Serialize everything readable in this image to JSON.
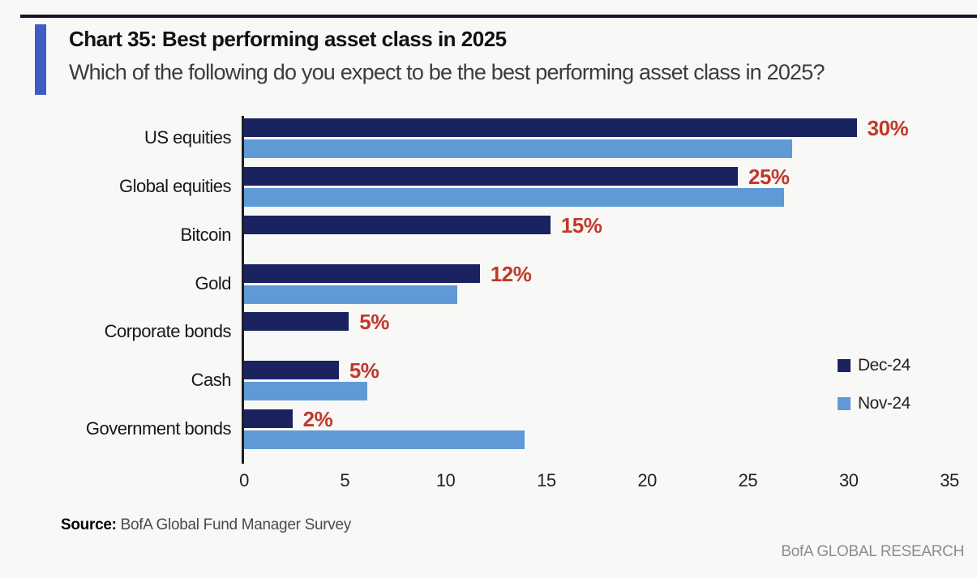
{
  "header": {
    "title": "Chart 35: Best performing asset class in 2025",
    "subtitle": "Which of the following do you expect to be the best performing asset class in 2025?",
    "accent_color": "#3d5cc5"
  },
  "chart_data": {
    "type": "bar",
    "orientation": "horizontal",
    "title": "Chart 35: Best performing asset class in 2025",
    "categories": [
      "US equities",
      "Global equities",
      "Bitcoin",
      "Gold",
      "Corporate bonds",
      "Cash",
      "Government bonds"
    ],
    "series": [
      {
        "name": "Dec-24",
        "color": "#1a2360",
        "values": [
          30.4,
          24.5,
          15.2,
          11.7,
          5.2,
          4.7,
          2.4
        ],
        "data_labels": [
          "30%",
          "25%",
          "15%",
          "12%",
          "5%",
          "5%",
          "2%"
        ]
      },
      {
        "name": "Nov-24",
        "color": "#5f9ad6",
        "values": [
          27.2,
          26.8,
          null,
          10.6,
          null,
          6.1,
          13.9
        ]
      }
    ],
    "xlim": [
      0,
      35
    ],
    "xticks": [
      0,
      5,
      10,
      15,
      20,
      25,
      30,
      35
    ],
    "data_label_color": "#c0392b",
    "legend_position": "right-middle",
    "grid": false
  },
  "footer": {
    "source_label": "Source:",
    "source_text": "BofA Global Fund Manager Survey",
    "branding": "BofA GLOBAL RESEARCH"
  }
}
